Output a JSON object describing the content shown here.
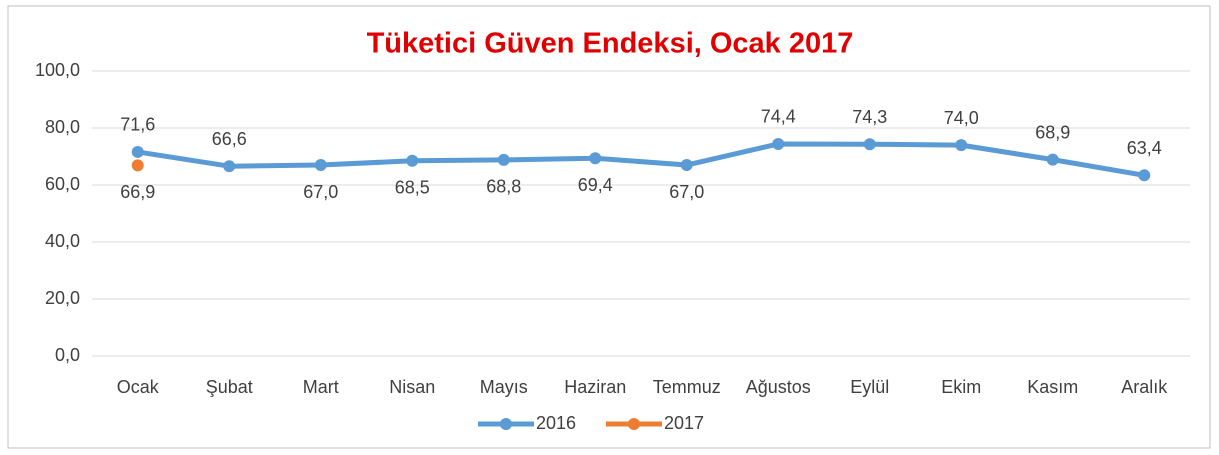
{
  "chart_data": {
    "type": "line",
    "title": "Tüketici Güven Endeksi, Ocak 2017",
    "categories": [
      "Ocak",
      "Şubat",
      "Mart",
      "Nisan",
      "Mayıs",
      "Haziran",
      "Temmuz",
      "Ağustos",
      "Eylül",
      "Ekim",
      "Kasım",
      "Aralık"
    ],
    "series": [
      {
        "name": "2016",
        "color": "#5b9bd5",
        "values": [
          71.6,
          66.6,
          67.0,
          68.5,
          68.8,
          69.4,
          67.0,
          74.4,
          74.3,
          74.0,
          68.9,
          63.4
        ],
        "value_labels": [
          "71,6",
          "66,6",
          "67,0",
          "68,5",
          "68,8",
          "69,4",
          "67,0",
          "74,4",
          "74,3",
          "74,0",
          "68,9",
          "63,4"
        ]
      },
      {
        "name": "2017",
        "color": "#ed7d31",
        "values": [
          66.9,
          null,
          null,
          null,
          null,
          null,
          null,
          null,
          null,
          null,
          null,
          null
        ],
        "value_labels": [
          "66,9",
          null,
          null,
          null,
          null,
          null,
          null,
          null,
          null,
          null,
          null,
          null
        ]
      }
    ],
    "ylim": [
      0,
      100
    ],
    "yticks": [
      {
        "value": 0,
        "label": "0,0"
      },
      {
        "value": 20,
        "label": "20,0"
      },
      {
        "value": 40,
        "label": "40,0"
      },
      {
        "value": 60,
        "label": "60,0"
      },
      {
        "value": 80,
        "label": "80,0"
      },
      {
        "value": 100,
        "label": "100,0"
      }
    ],
    "grid": true,
    "legend": "bottom"
  }
}
